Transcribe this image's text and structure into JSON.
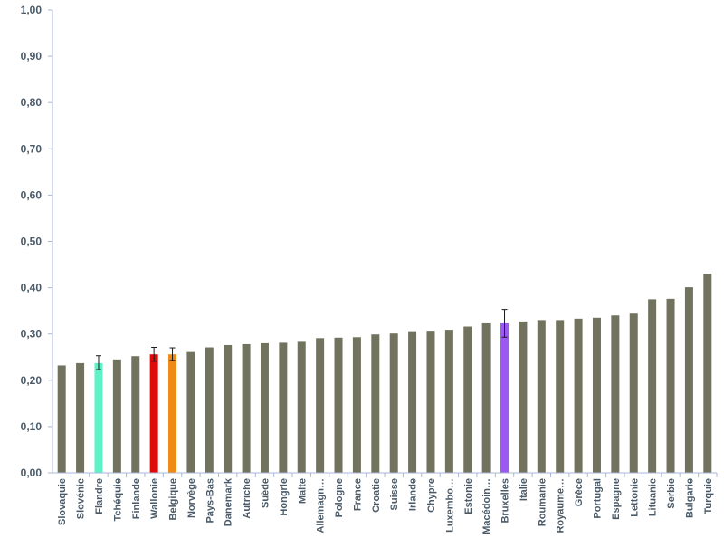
{
  "chart_data": {
    "type": "bar",
    "ylim": [
      0,
      1
    ],
    "yticks": [
      "0,00",
      "0,10",
      "0,20",
      "0,30",
      "0,40",
      "0,50",
      "0,60",
      "0,70",
      "0,80",
      "0,90",
      "1,00"
    ],
    "grid": false,
    "legend": "none",
    "categories": [
      "Slovaquie",
      "Slovénie",
      "Flandre",
      "Tchéquie",
      "Finlande",
      "Wallonie",
      "Belgique",
      "Norvège",
      "Pays-Bas",
      "Danemark",
      "Autriche",
      "Suède",
      "Hongrie",
      "Malte",
      "Allemagn…",
      "Pologne",
      "France",
      "Croatie",
      "Suisse",
      "Irlande",
      "Chypre",
      "Luxembo…",
      "Estonie",
      "Macédoin…",
      "Bruxelles",
      "Italie",
      "Roumanie",
      "Royaume…",
      "Grèce",
      "Portugal",
      "Espagne",
      "Lettonie",
      "Lituanie",
      "Serbie",
      "Bulgarie",
      "Turquie"
    ],
    "values": [
      0.232,
      0.237,
      0.237,
      0.245,
      0.252,
      0.256,
      0.256,
      0.261,
      0.271,
      0.276,
      0.278,
      0.28,
      0.281,
      0.283,
      0.291,
      0.292,
      0.293,
      0.299,
      0.301,
      0.306,
      0.307,
      0.309,
      0.316,
      0.323,
      0.323,
      0.327,
      0.33,
      0.33,
      0.333,
      0.335,
      0.34,
      0.344,
      0.375,
      0.376,
      0.401,
      0.43
    ],
    "bar_colors": [
      "#72735f",
      "#72735f",
      "#5ef2c6",
      "#72735f",
      "#72735f",
      "#dd0a0a",
      "#f08a17",
      "#72735f",
      "#72735f",
      "#72735f",
      "#72735f",
      "#72735f",
      "#72735f",
      "#72735f",
      "#72735f",
      "#72735f",
      "#72735f",
      "#72735f",
      "#72735f",
      "#72735f",
      "#72735f",
      "#72735f",
      "#72735f",
      "#72735f",
      "#9b59f2",
      "#72735f",
      "#72735f",
      "#72735f",
      "#72735f",
      "#72735f",
      "#72735f",
      "#72735f",
      "#72735f",
      "#72735f",
      "#72735f",
      "#72735f"
    ],
    "error_bars": [
      {
        "category": "Flandre",
        "low": 0.223,
        "high": 0.253
      },
      {
        "category": "Wallonie",
        "low": 0.241,
        "high": 0.271
      },
      {
        "category": "Belgique",
        "low": 0.243,
        "high": 0.27
      },
      {
        "category": "Bruxelles",
        "low": 0.293,
        "high": 0.353
      }
    ],
    "colors": {
      "axis": "#a9b7d6",
      "label": "#4a5a68"
    }
  }
}
